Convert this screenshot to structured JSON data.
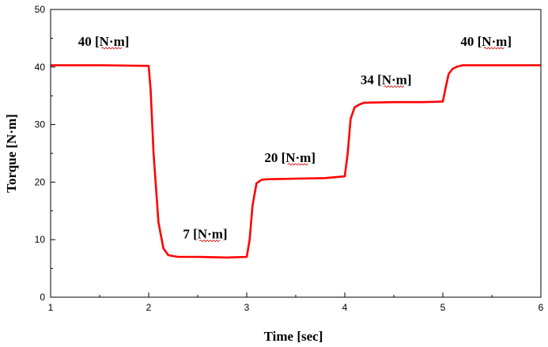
{
  "chart_data": {
    "type": "line",
    "title": "",
    "xlabel": "Time [sec]",
    "ylabel": "Torque  [N·m]",
    "xlim": [
      1,
      6
    ],
    "ylim": [
      0,
      50
    ],
    "xticks": [
      1,
      2,
      3,
      4,
      5,
      6
    ],
    "yticks": [
      0,
      10,
      20,
      30,
      40,
      50
    ],
    "x_minor_step": 0.5,
    "y_minor_step": 5,
    "grid": false,
    "line_color": "#ff0000",
    "series": [
      {
        "x": [
          1.0,
          1.5,
          2.0,
          2.02,
          2.05,
          2.1,
          2.15,
          2.2,
          2.3,
          2.5,
          2.8,
          3.0,
          3.03,
          3.06,
          3.1,
          3.15,
          3.2,
          3.5,
          3.8,
          4.0,
          4.03,
          4.06,
          4.1,
          4.15,
          4.2,
          4.5,
          4.8,
          5.0,
          5.03,
          5.06,
          5.1,
          5.15,
          5.2,
          5.5,
          6.0
        ],
        "y": [
          40.3,
          40.3,
          40.2,
          36.0,
          25.0,
          13.0,
          8.5,
          7.3,
          7.0,
          7.0,
          6.9,
          7.0,
          10.0,
          16.0,
          19.8,
          20.4,
          20.5,
          20.6,
          20.7,
          21.0,
          25.0,
          31.0,
          33.0,
          33.5,
          33.8,
          33.9,
          33.9,
          34.0,
          36.5,
          38.8,
          39.7,
          40.1,
          40.3,
          40.3,
          40.3
        ]
      }
    ],
    "annotations": [
      {
        "value": "40",
        "unit": "[N·m]",
        "x": 1.28,
        "y": 43.7
      },
      {
        "value": "7",
        "unit": "[N·m]",
        "x": 2.35,
        "y": 10.2
      },
      {
        "value": "20",
        "unit": "[N·m]",
        "x": 3.18,
        "y": 23.5
      },
      {
        "value": "34",
        "unit": "[N·m]",
        "x": 4.16,
        "y": 37.0
      },
      {
        "value": "40",
        "unit": "[N·m]",
        "x": 5.18,
        "y": 43.7
      }
    ]
  }
}
